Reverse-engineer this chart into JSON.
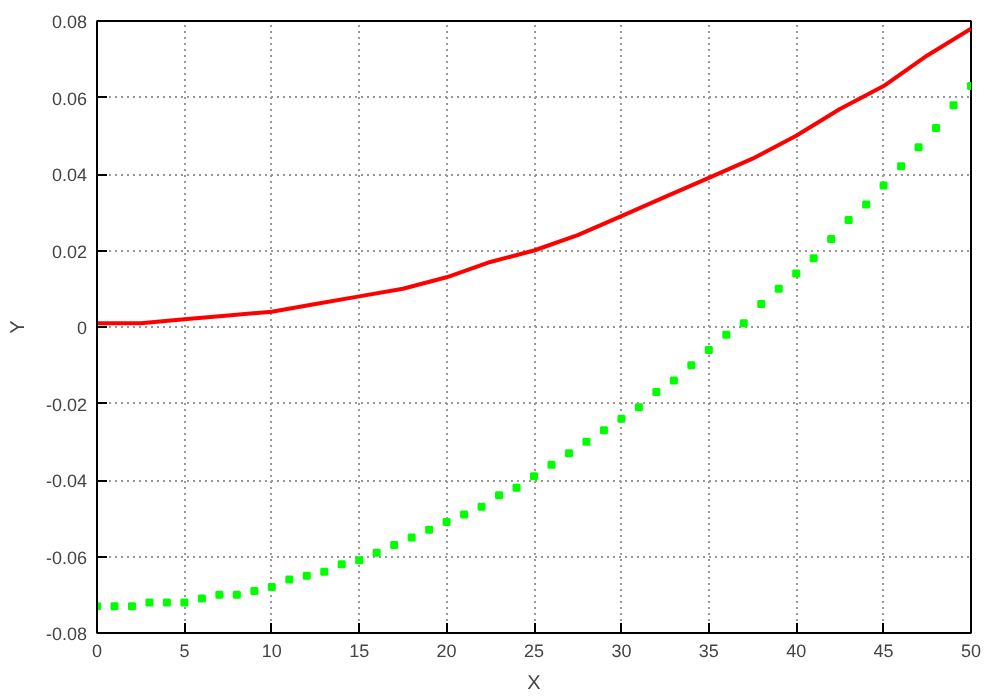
{
  "chart_data": {
    "type": "scatter",
    "xlabel": "X",
    "ylabel": "Y",
    "xlim": [
      0,
      50
    ],
    "ylim": [
      -0.08,
      0.08
    ],
    "xticks": [
      0,
      5,
      10,
      15,
      20,
      25,
      30,
      35,
      40,
      45,
      50
    ],
    "yticks": [
      -0.08,
      -0.06,
      -0.04,
      -0.02,
      0,
      0.02,
      0.04,
      0.06,
      0.08
    ],
    "grid": true,
    "series": [
      {
        "type": "line",
        "color": "#ff0000",
        "line_style": "solid",
        "x": [
          0,
          2.5,
          5,
          7.5,
          10,
          12.5,
          15,
          17.5,
          20,
          22.5,
          25,
          27.5,
          30,
          32.5,
          35,
          37.5,
          40,
          42.5,
          45,
          47.5,
          50
        ],
        "values": [
          0.001,
          0.001,
          0.002,
          0.003,
          0.004,
          0.006,
          0.008,
          0.01,
          0.013,
          0.017,
          0.02,
          0.024,
          0.029,
          0.034,
          0.039,
          0.044,
          0.05,
          0.057,
          0.063,
          0.071,
          0.078
        ]
      },
      {
        "color": "#00ff00",
        "marker": "square",
        "x": [
          0,
          1,
          2,
          3,
          4,
          5,
          6,
          7,
          8,
          9,
          10,
          11,
          12,
          13,
          14,
          15,
          16,
          17,
          18,
          19,
          20,
          21,
          22,
          23,
          24,
          25,
          26,
          27,
          28,
          29,
          30,
          31,
          32,
          33,
          34,
          35,
          36,
          37,
          38,
          39,
          40,
          41,
          42,
          43,
          44,
          45,
          46,
          47,
          48,
          49,
          50
        ],
        "values": [
          -0.073,
          -0.073,
          -0.073,
          -0.072,
          -0.072,
          -0.072,
          -0.071,
          -0.07,
          -0.07,
          -0.069,
          -0.068,
          -0.066,
          -0.065,
          -0.064,
          -0.062,
          -0.061,
          -0.059,
          -0.057,
          -0.055,
          -0.053,
          -0.051,
          -0.049,
          -0.047,
          -0.044,
          -0.042,
          -0.039,
          -0.036,
          -0.033,
          -0.03,
          -0.027,
          -0.024,
          -0.021,
          -0.017,
          -0.014,
          -0.01,
          -0.006,
          -0.002,
          0.001,
          0.006,
          0.01,
          0.014,
          0.018,
          0.023,
          0.028,
          0.032,
          0.037,
          0.042,
          0.047,
          0.052,
          0.058,
          0.063
        ]
      }
    ]
  }
}
